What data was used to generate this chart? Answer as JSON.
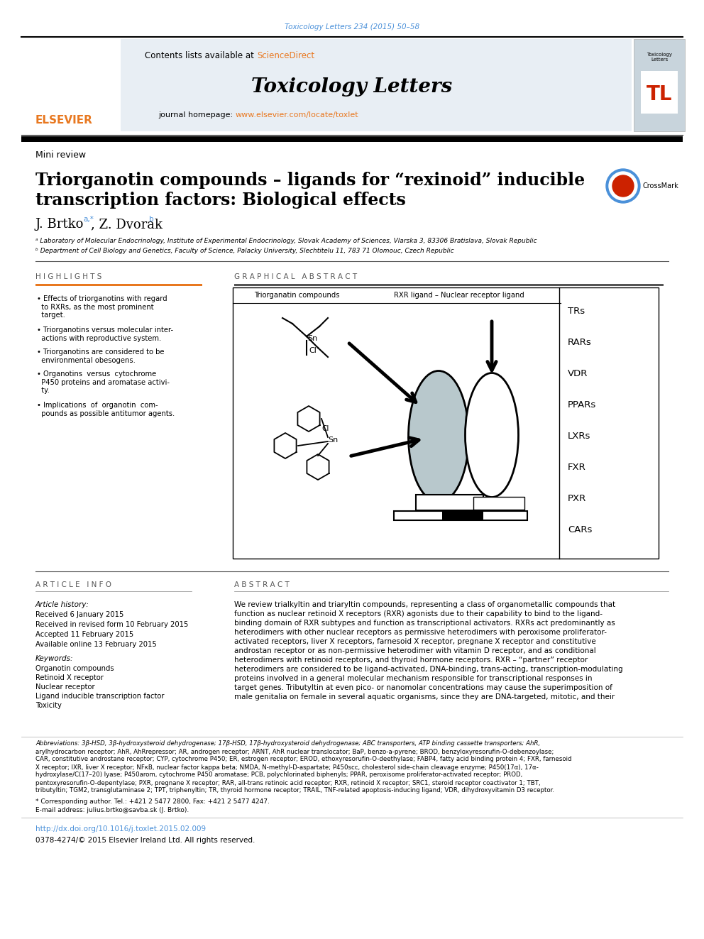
{
  "page_bg": "#ffffff",
  "top_citation": "Toxicology Letters 234 (2015) 50–58",
  "top_citation_color": "#4a90d9",
  "header_bg": "#e8eef4",
  "header_link_color": "#e87820",
  "journal_title": "Toxicology Letters",
  "journal_homepage_link": "www.elsevier.com/locate/toxlet",
  "mini_review": "Mini review",
  "article_title_line1": "Triorganotin compounds – ligands for “rexinoid” inducible",
  "article_title_line2": "transcription factors: Biological effects",
  "affil_a": "ᵃ Laboratory of Molecular Endocrinology, Institute of Experimental Endocrinology, Slovak Academy of Sciences, Vlarska 3, 83306 Bratislava, Slovak Republic",
  "affil_b": "ᵇ Department of Cell Biology and Genetics, Faculty of Science, Palacky University, Slechtitelu 11, 783 71 Olomouc, Czech Republic",
  "highlights_title": "H I G H L I G H T S",
  "graphical_abstract_title": "G R A P H I C A L   A B S T R A C T",
  "ga_box_label1": "Triorganatin compounds",
  "ga_box_label2": "RXR ligand – Nuclear receptor ligand",
  "ga_receptors": [
    "TRs",
    "RARs",
    "VDR",
    "PPARs",
    "LXRs",
    "FXR",
    "PXR",
    "CARs"
  ],
  "article_info_title": "A R T I C L E   I N F O",
  "article_history_title": "Article history:",
  "received": "Received 6 January 2015",
  "revised": "Received in revised form 10 February 2015",
  "accepted": "Accepted 11 February 2015",
  "available": "Available online 13 February 2015",
  "keywords_title": "Keywords:",
  "keywords": [
    "Organotin compounds",
    "Retinoid X receptor",
    "Nuclear receptor",
    "Ligand inducible transcription factor",
    "Toxicity"
  ],
  "abstract_title": "A B S T R A C T",
  "abstract_lines": [
    "We review trialkyltin and triaryltin compounds, representing a class of organometallic compounds that",
    "function as nuclear retinoid X receptors (RXR) agonists due to their capability to bind to the ligand-",
    "binding domain of RXR subtypes and function as transcriptional activators. RXRs act predominantly as",
    "heterodimers with other nuclear receptors as permissive heterodimers with peroxisome proliferator-",
    "activated receptors, liver X receptors, farnesoid X receptor, pregnane X receptor and constitutive",
    "androstan receptor or as non-permissive heterodimer with vitamin D receptor, and as conditional",
    "heterodimers with retinoid receptors, and thyroid hormone receptors. RXR – “partner” receptor",
    "heterodimers are considered to be ligand-activated, DNA-binding, trans-acting, transcription-modulating",
    "proteins involved in a general molecular mechanism responsible for transcriptional responses in",
    "target genes. Tributyltin at even pico- or nanomolar concentrations may cause the superimposition of",
    "male genitalia on female in several aquatic organisms, since they are DNA-targeted, mitotic, and their"
  ],
  "abbrev_lines": [
    "Abbreviations: 3β-HSD, 3β-hydroxysteroid dehydrogenase; 17β-HSD, 17β-hydroxysteroid dehydrogenase; ABC transporters, ATP binding cassette transporters; AhR,",
    "arylhydrocarbon receptor; AhR, AhRrepressor; AR, androgen receptor; ARNT, AhR nuclear translocator; BaP, benzo-a-pyrene; BROD, benzyloxyresorufin-O-debenzoylase;",
    "CAR, constitutive androstane receptor; CYP, cytochrome P450; ER, estrogen receptor; EROD, ethoxyresorufin-O-deethylase; FABP4, fatty acid binding protein 4; FXR, farnesoid",
    "X receptor; lXR, liver X receptor; NFκB, nuclear factor kappa beta; NMDA, N-methyl-D-aspartate; P450scc, cholesterol side-chain cleavage enzyme; P450(17α), 17α-",
    "hydroxylase/C(17–20) lyase; P450arom, cytochrome P450 aromatase; PCB, polychlorinated biphenyls; PPAR, peroxisome proliferator-activated receptor; PROD,",
    "pentoxyresorufin-O-depentylase; PXR, pregnane X receptor; RAR, all-trans retinoic acid receptor; RXR, retinoid X receptor; SRC1, steroid receptor coactivator 1; TBT,",
    "tributyltin; TGM2, transglutaminase 2; TPT, triphenyltin; TR, thyroid hormone receptor; TRAIL, TNF-related apoptosis-inducing ligand; VDR, dihydroxyvitamin D3 receptor."
  ],
  "corr_text": "* Corresponding author. Tel.: +421 2 5477 2800, Fax: +421 2 5477 4247.",
  "email_text": "E-mail address: julius.brtko@savba.sk (J. Brtko).",
  "doi_text": "http://dx.doi.org/10.1016/j.toxlet.2015.02.009",
  "doi_color": "#4a90d9",
  "issn_text": "0378-4274/© 2015 Elsevier Ireland Ltd. All rights reserved.",
  "elsevier_color": "#e87820",
  "highlight_bar_color": "#e87820",
  "bullet_texts": [
    "• Effects of triorganotins with regard\n  to RXRs, as the most prominent\n  target.",
    "• Triorganotins versus molecular inter-\n  actions with reproductive system.",
    "• Triorganotins are considered to be\n  environmental obesogens.",
    "• Organotins  versus  cytochrome\n  P450 proteins and aromatase activi-\n  ty.",
    "• Implications  of  organotin  com-\n  pounds as possible antitumor agents."
  ]
}
